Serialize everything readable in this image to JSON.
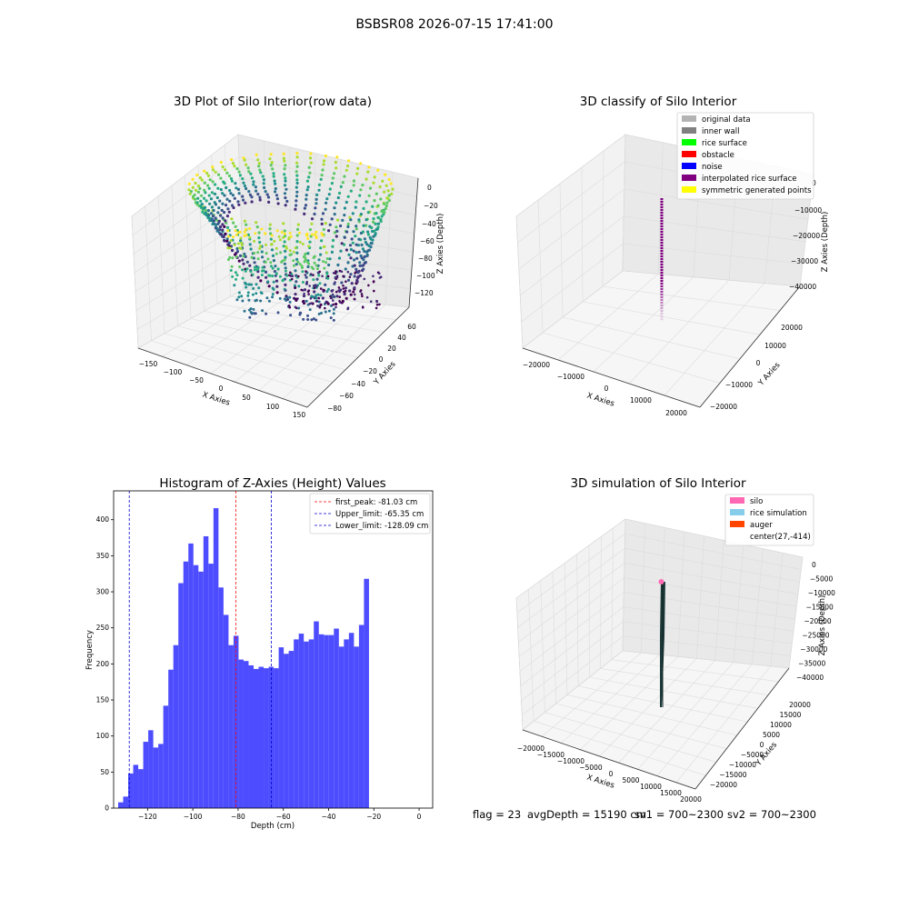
{
  "suptitle": "BSBSR08 2026-07-15 17:41:00",
  "colors": {
    "histogram_bar": "#4d4dff",
    "first_peak_line": "#ff0000",
    "limit_line": "#0000cc",
    "pane": "#f2f2f2",
    "grid": "#dcdcdc"
  },
  "chart_data": [
    {
      "id": "raw-plot",
      "type": "scatter",
      "title": "3D Plot of Silo Interior(row data)",
      "xlabel": "X Axies",
      "ylabel": "Y Axies",
      "zlabel": "Z Axies (Depth)",
      "xlim": [
        -170,
        170
      ],
      "ylim": [
        -90,
        75
      ],
      "zlim": [
        -140,
        5
      ],
      "xticks": [
        "−150",
        "−100",
        "−50",
        "0",
        "50",
        "100",
        "150"
      ],
      "yticks": [
        "−80",
        "−60",
        "−40",
        "−20",
        "0",
        "20",
        "40",
        "60"
      ],
      "zticks": [
        "0",
        "−20",
        "−40",
        "−60",
        "−80",
        "−100",
        "−120"
      ],
      "colormap": "viridis"
    },
    {
      "id": "classify-plot",
      "type": "scatter",
      "title": "3D classify of Silo Interior",
      "xlabel": "X Axies",
      "ylabel": "Y Axies",
      "zlabel": "Z Axies (Depth)",
      "xticks": [
        "−20000",
        "−10000",
        "0",
        "10000",
        "20000"
      ],
      "yticks": [
        "−20000",
        "−10000",
        "0",
        "10000",
        "20000"
      ],
      "zticks": [
        "0",
        "−10000",
        "−20000",
        "−30000",
        "−40000"
      ],
      "legend_position": "top-right",
      "legend": [
        {
          "label": "original data",
          "color": "#b3b3b3"
        },
        {
          "label": "inner wall",
          "color": "#808080"
        },
        {
          "label": "rice surface",
          "color": "#00ff00"
        },
        {
          "label": "obstacle",
          "color": "#ff0000"
        },
        {
          "label": "noise",
          "color": "#0000ff"
        },
        {
          "label": "interpolated rice surface",
          "color": "#800080"
        },
        {
          "label": "symmetric generated points",
          "color": "#ffff00"
        }
      ]
    },
    {
      "id": "histogram",
      "type": "bar",
      "title": "Histogram of Z-Axies (Height) Values",
      "xlabel": "Depth (cm)",
      "ylabel": "Frequency",
      "xlim": [
        -135,
        6
      ],
      "ylim": [
        0,
        440
      ],
      "xticks": [
        -120,
        -100,
        -80,
        -60,
        -40,
        -20,
        0
      ],
      "xtick_labels": [
        "−120",
        "−100",
        "−80",
        "−60",
        "−40",
        "−20",
        "0"
      ],
      "yticks": [
        0,
        50,
        100,
        150,
        200,
        250,
        300,
        350,
        400
      ],
      "bin_start": -133,
      "bin_width": 2.217,
      "values": [
        8,
        16,
        48,
        60,
        54,
        92,
        108,
        84,
        89,
        142,
        192,
        226,
        312,
        342,
        367,
        337,
        328,
        377,
        339,
        416,
        306,
        268,
        226,
        239,
        206,
        204,
        198,
        193,
        196,
        194,
        196,
        194,
        223,
        214,
        218,
        234,
        242,
        231,
        234,
        259,
        241,
        240,
        240,
        249,
        224,
        234,
        243,
        224,
        254,
        318
      ],
      "legend_position": "top-right",
      "lines": [
        {
          "label": "first_peak: -81.03 cm",
          "x": -81.03,
          "color": "#ff0000"
        },
        {
          "label": "Upper_limit: -65.35 cm",
          "x": -65.35,
          "color": "#0000cc"
        },
        {
          "label": "Lower_limit: -128.09 cm",
          "x": -128.09,
          "color": "#0000cc"
        }
      ]
    },
    {
      "id": "simulation-plot",
      "type": "scatter",
      "title": "3D simulation of Silo Interior",
      "xlabel": "X Axies",
      "ylabel": "Y Axies",
      "zlabel": "Z Axies (Depth)",
      "xticks": [
        "−20000",
        "−15000",
        "−10000",
        "−5000",
        "0",
        "5000",
        "10000",
        "15000",
        "20000"
      ],
      "yticks": [
        "−20000",
        "−15000",
        "−10000",
        "−5000",
        "0",
        "5000",
        "10000",
        "15000",
        "20000"
      ],
      "zticks": [
        "0",
        "−5000",
        "−10000",
        "−15000",
        "−20000",
        "−25000",
        "−30000",
        "−35000",
        "−40000"
      ],
      "legend_position": "top-right",
      "legend": [
        {
          "label": "silo",
          "color": "#ff69b4"
        },
        {
          "label": "rice simulation",
          "color": "#87ceeb"
        },
        {
          "label": "auger",
          "color": "#ff4500"
        },
        {
          "label": "center(27,-414)",
          "color": ""
        }
      ]
    }
  ],
  "footer": {
    "flag": "flag = 23",
    "avg_depth": "avgDepth = 15190 cm",
    "sv1": "sv1 = 700~2300",
    "sv2": "sv2 = 700~2300"
  }
}
